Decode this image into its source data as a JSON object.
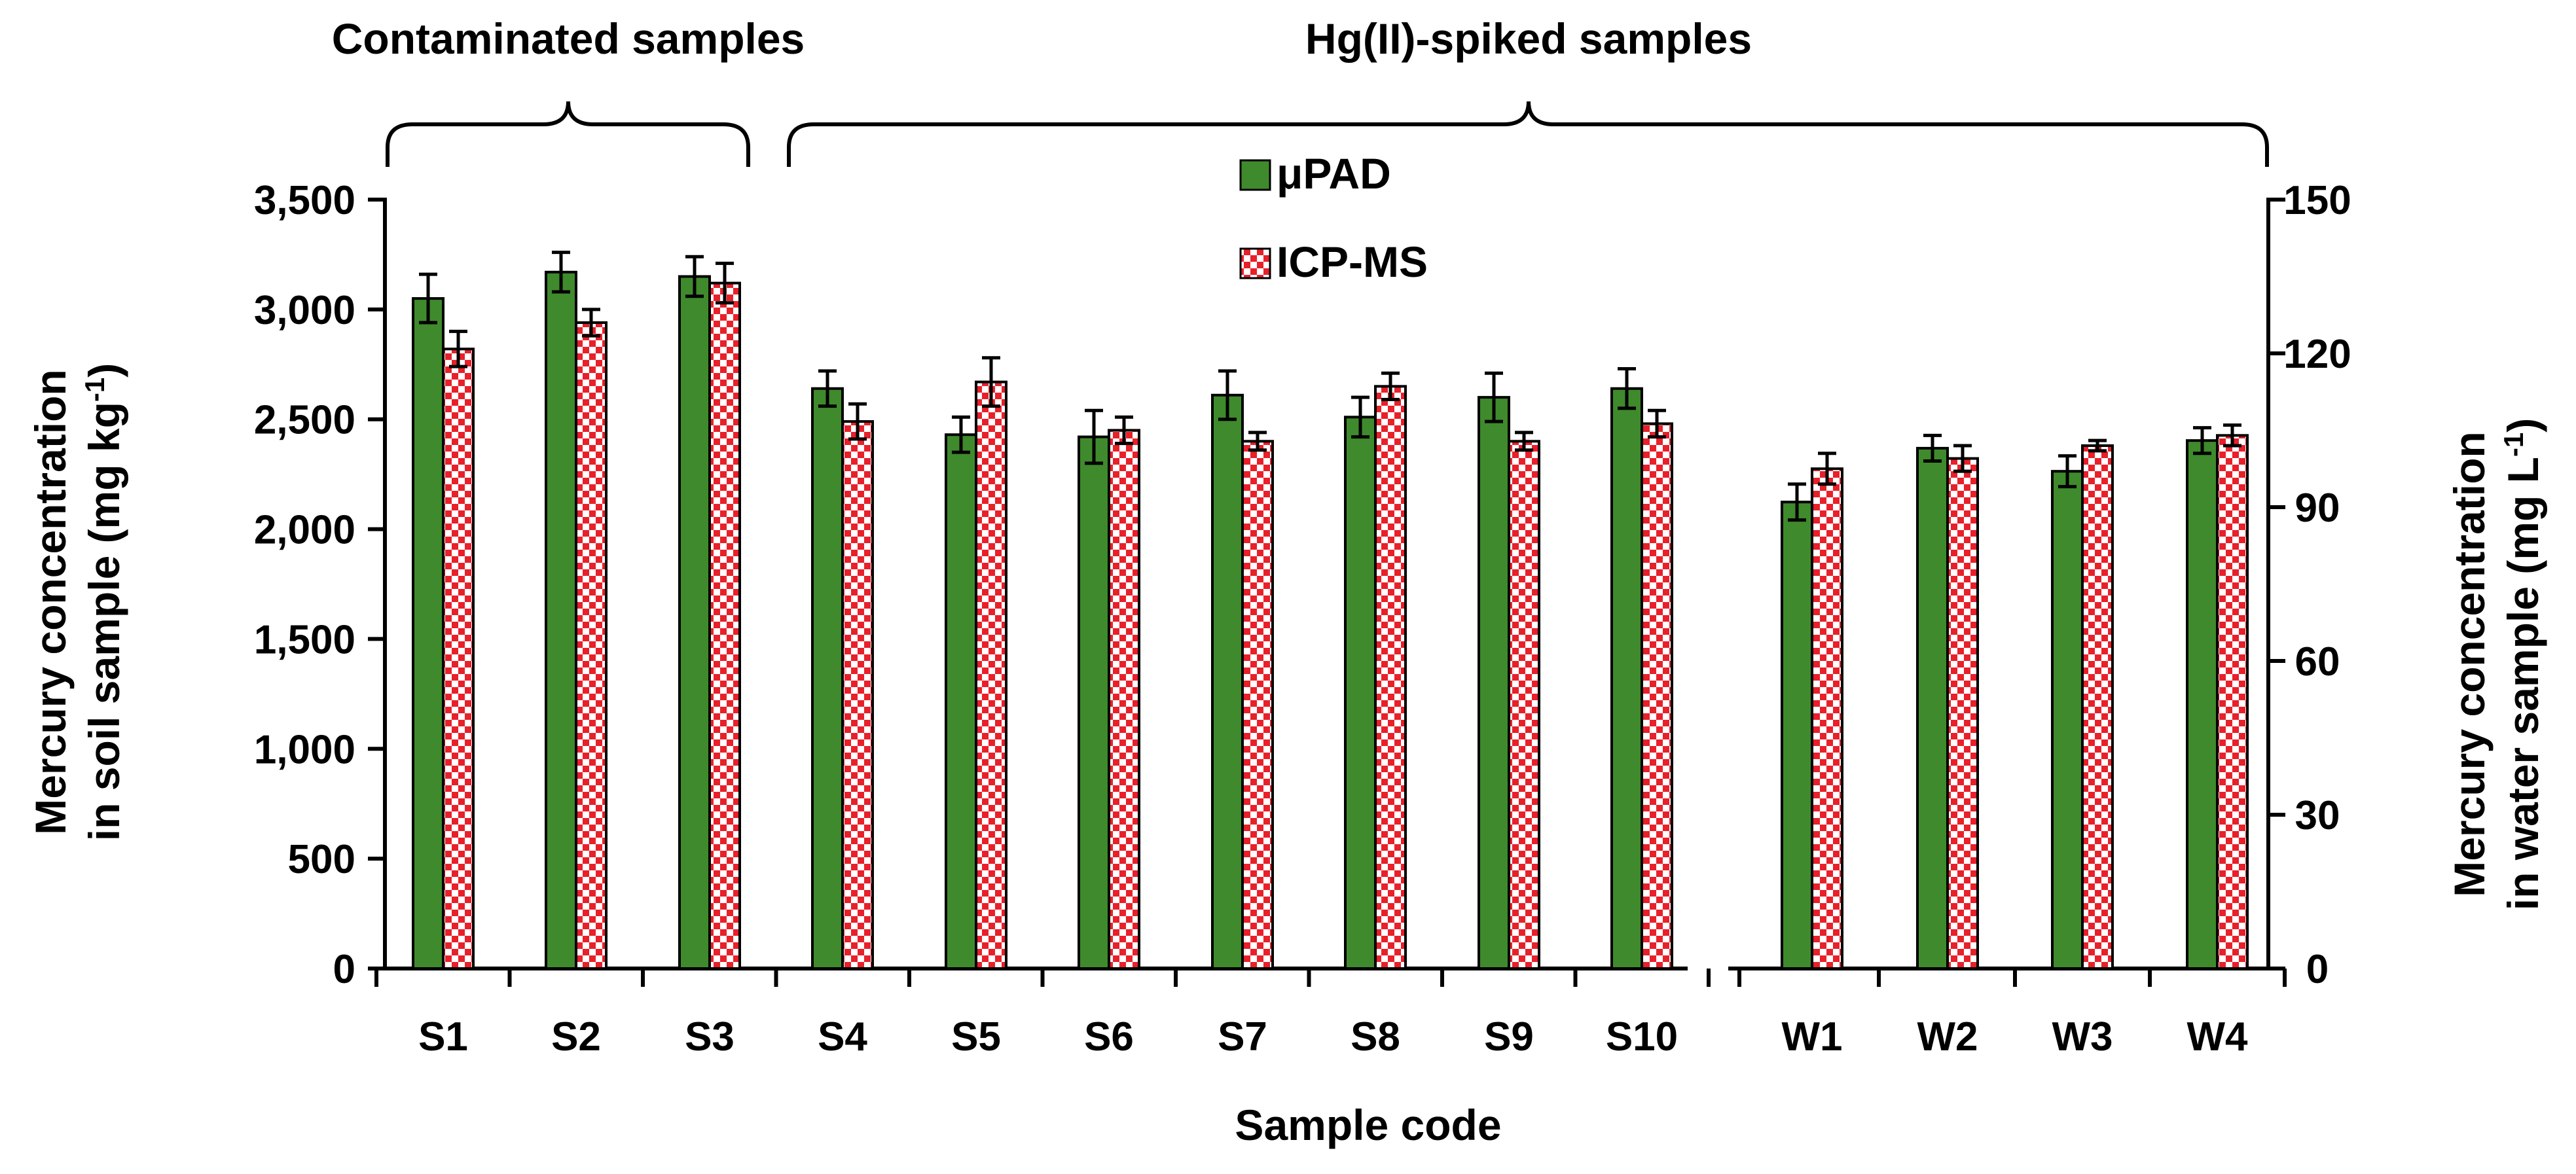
{
  "chart_data": {
    "type": "bar",
    "xlabel": "Sample code",
    "groups": [
      {
        "label": "Contaminated samples",
        "first": "S1",
        "last": "S3"
      },
      {
        "label": "Hg(II)-spiked samples",
        "first": "S4",
        "last": "W4"
      }
    ],
    "legend": {
      "position": "top-center",
      "entries": [
        "μPAD",
        "ICP-MS"
      ]
    },
    "left_axis": {
      "label_main": "Mercury concentration",
      "label_sub_prefix": "in soil sample (mg kg",
      "label_sup": "-1",
      "label_suffix": ")",
      "ylim": [
        0,
        3500
      ],
      "ticks": [
        "0",
        "500",
        "1,000",
        "1,500",
        "2,000",
        "2,500",
        "3,000",
        "3,500"
      ],
      "tick_values": [
        0,
        500,
        1000,
        1500,
        2000,
        2500,
        3000,
        3500
      ]
    },
    "right_axis": {
      "label_main": "Mercury concentration",
      "label_sub_prefix": "in water sample (mg L",
      "label_sup": "-1",
      "label_suffix": ")",
      "ylim": [
        0,
        150
      ],
      "ticks": [
        "0",
        "30",
        "60",
        "90",
        "120",
        "150"
      ],
      "tick_values": [
        0,
        30,
        60,
        90,
        120,
        150
      ]
    },
    "categories": [
      "S1",
      "S2",
      "S3",
      "S4",
      "S5",
      "S6",
      "S7",
      "S8",
      "S9",
      "S10",
      "W1",
      "W2",
      "W3",
      "W4"
    ],
    "axis_for_category": [
      "left",
      "left",
      "left",
      "left",
      "left",
      "left",
      "left",
      "left",
      "left",
      "left",
      "right",
      "right",
      "right",
      "right"
    ],
    "series": [
      {
        "name": "μPAD",
        "color": "#3f8a2c",
        "values": [
          3050,
          3170,
          3150,
          2640,
          2430,
          2420,
          2610,
          2510,
          2600,
          2640,
          91.0,
          101.5,
          97.0,
          103.0
        ],
        "errors": [
          110,
          90,
          90,
          80,
          80,
          120,
          110,
          90,
          110,
          90,
          3.5,
          2.5,
          3.0,
          2.5
        ]
      },
      {
        "name": "ICP-MS",
        "color": "#e8202a",
        "pattern": "checker",
        "values": [
          2820,
          2940,
          3120,
          2490,
          2670,
          2450,
          2400,
          2650,
          2400,
          2480,
          97.5,
          99.5,
          102.0,
          104.0
        ],
        "errors": [
          80,
          60,
          90,
          80,
          110,
          60,
          40,
          60,
          40,
          60,
          3.0,
          2.5,
          1.0,
          2.0
        ]
      }
    ]
  }
}
